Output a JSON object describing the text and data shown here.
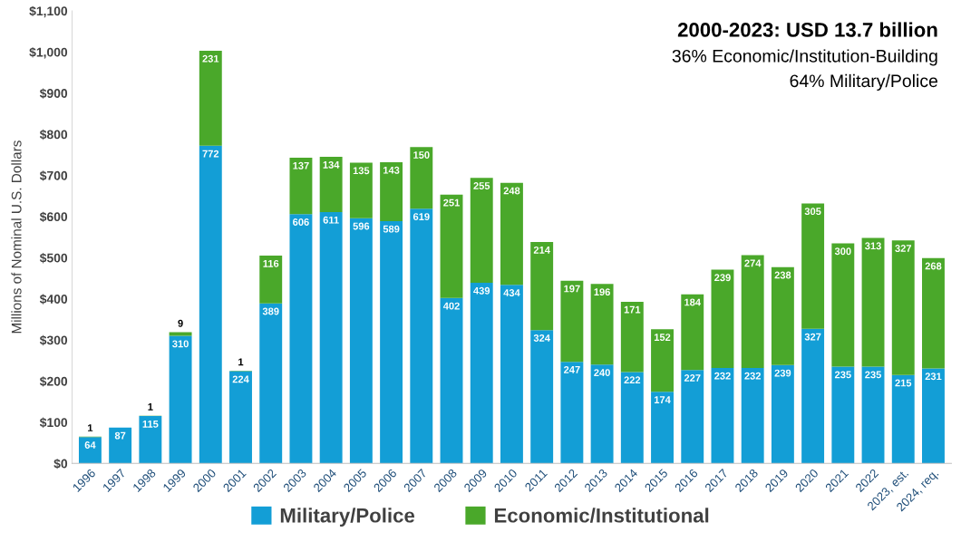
{
  "chart_data": {
    "type": "bar",
    "stacked": true,
    "title": "2000-2023: USD 13.7 billion",
    "annotations": [
      "36% Economic/Institution-Building",
      "64% Military/Police"
    ],
    "ylabel": "Millions of Nominal U.S. Dollars",
    "categories": [
      "1996",
      "1997",
      "1998",
      "1999",
      "2000",
      "2001",
      "2002",
      "2003",
      "2004",
      "2005",
      "2006",
      "2007",
      "2008",
      "2009",
      "2010",
      "2011",
      "2012",
      "2013",
      "2014",
      "2015",
      "2016",
      "2017",
      "2018",
      "2019",
      "2020",
      "2021",
      "2022",
      "2023, est.",
      "2024, req."
    ],
    "series": [
      {
        "name": "Military/Police",
        "color": "#139ed6",
        "values": [
          64,
          87,
          115,
          310,
          772,
          224,
          389,
          606,
          611,
          596,
          589,
          619,
          402,
          439,
          434,
          324,
          247,
          240,
          222,
          174,
          227,
          232,
          232,
          239,
          327,
          235,
          235,
          215,
          231
        ]
      },
      {
        "name": "Economic/Institutional",
        "color": "#4aa82a",
        "values": [
          1,
          null,
          1,
          9,
          231,
          1,
          116,
          137,
          134,
          135,
          143,
          150,
          251,
          255,
          248,
          214,
          197,
          196,
          171,
          152,
          184,
          239,
          274,
          238,
          305,
          300,
          313,
          327,
          268
        ]
      }
    ],
    "ylim": [
      0,
      1100
    ],
    "yticks": [
      {
        "value": 0,
        "label": "$0"
      },
      {
        "value": 100,
        "label": "$100"
      },
      {
        "value": 200,
        "label": "$200"
      },
      {
        "value": 300,
        "label": "$300"
      },
      {
        "value": 400,
        "label": "$400"
      },
      {
        "value": 500,
        "label": "$500"
      },
      {
        "value": 600,
        "label": "$600"
      },
      {
        "value": 700,
        "label": "$700"
      },
      {
        "value": 800,
        "label": "$800"
      },
      {
        "value": 900,
        "label": "$900"
      },
      {
        "value": 1000,
        "label": "$1,000"
      },
      {
        "value": 1100,
        "label": "$1,100"
      }
    ],
    "data_labels": true,
    "legend": "bottom"
  }
}
